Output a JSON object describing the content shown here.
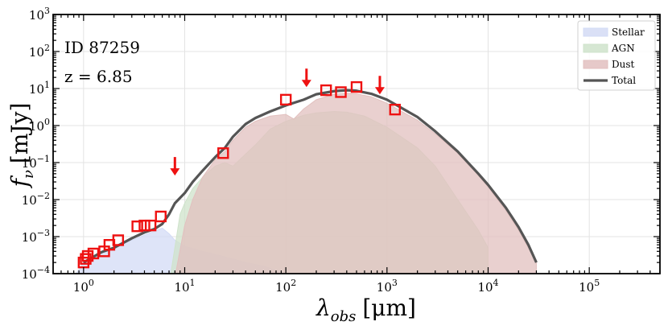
{
  "chart_data": {
    "type": "area",
    "xlabel": "λ_obs [μm]",
    "xlabel_main": "λ",
    "xlabel_sub": "obs",
    "xlabel_unit": "[μm]",
    "ylabel": "f_ν [mJy]",
    "ylabel_main": "f",
    "ylabel_sub": "ν",
    "ylabel_unit": "[mJy]",
    "xscale": "log",
    "yscale": "log",
    "xlim": [
      0.5,
      500000
    ],
    "ylim": [
      0.0001,
      1000
    ],
    "grid": true,
    "legend_position": "top-right",
    "x_ticks": [
      {
        "value": 1,
        "base": "10",
        "exp": "0"
      },
      {
        "value": 10,
        "base": "10",
        "exp": "1"
      },
      {
        "value": 100,
        "base": "10",
        "exp": "2"
      },
      {
        "value": 1000,
        "base": "10",
        "exp": "3"
      },
      {
        "value": 10000,
        "base": "10",
        "exp": "4"
      },
      {
        "value": 100000,
        "base": "10",
        "exp": "5"
      }
    ],
    "y_ticks": [
      {
        "value": 0.0001,
        "base": "10",
        "exp": "−4"
      },
      {
        "value": 0.001,
        "base": "10",
        "exp": "−3"
      },
      {
        "value": 0.01,
        "base": "10",
        "exp": "−2"
      },
      {
        "value": 0.1,
        "base": "10",
        "exp": "−1"
      },
      {
        "value": 1,
        "base": "10",
        "exp": "0"
      },
      {
        "value": 10,
        "base": "10",
        "exp": "1"
      },
      {
        "value": 100,
        "base": "10",
        "exp": "2"
      },
      {
        "value": 1000,
        "base": "10",
        "exp": "3"
      }
    ],
    "annotations": [
      "ID 87259",
      "z = 6.85"
    ],
    "series": [
      {
        "name": "Stellar",
        "color": "#d3dbf5",
        "points": [
          [
            0.8,
            8e-05
          ],
          [
            0.9,
            0.00013
          ],
          [
            1.0,
            0.0002
          ],
          [
            1.2,
            0.00028
          ],
          [
            1.5,
            0.00038
          ],
          [
            2.0,
            0.0005
          ],
          [
            3.0,
            0.0008
          ],
          [
            4.0,
            0.0011
          ],
          [
            5.0,
            0.0014
          ],
          [
            6.0,
            0.0017
          ],
          [
            7.0,
            0.0012
          ],
          [
            8.0,
            0.0008
          ],
          [
            10.0,
            0.00055
          ],
          [
            15.0,
            0.0004
          ],
          [
            20.0,
            0.00033
          ],
          [
            30.0,
            0.00025
          ],
          [
            40.0,
            0.0002
          ],
          [
            60.0,
            0.00016
          ],
          [
            100.0,
            0.0001
          ],
          [
            150.0,
            7e-05
          ]
        ]
      },
      {
        "name": "AGN",
        "color": "#cfe3cb",
        "points": [
          [
            7.0,
            5e-05
          ],
          [
            9.0,
            0.004
          ],
          [
            10.0,
            0.008
          ],
          [
            12.0,
            0.02
          ],
          [
            15.0,
            0.04
          ],
          [
            20.0,
            0.08
          ],
          [
            25.0,
            0.1
          ],
          [
            30.0,
            0.08
          ],
          [
            35.0,
            0.12
          ],
          [
            50.0,
            0.3
          ],
          [
            70.0,
            0.8
          ],
          [
            100.0,
            1.3
          ],
          [
            150.0,
            1.9
          ],
          [
            200.0,
            2.2
          ],
          [
            300.0,
            2.4
          ],
          [
            400.0,
            2.3
          ],
          [
            600.0,
            1.8
          ],
          [
            1000.0,
            0.9
          ],
          [
            2000.0,
            0.25
          ],
          [
            3000.0,
            0.08
          ],
          [
            5000.0,
            0.01
          ],
          [
            8000.0,
            0.0015
          ],
          [
            10000.0,
            0.0005
          ]
        ]
      },
      {
        "name": "Dust",
        "color": "#e2c0bf",
        "points": [
          [
            8.0,
            8e-05
          ],
          [
            10.0,
            0.002
          ],
          [
            12.0,
            0.01
          ],
          [
            15.0,
            0.04
          ],
          [
            20.0,
            0.12
          ],
          [
            25.0,
            0.2
          ],
          [
            30.0,
            0.4
          ],
          [
            40.0,
            0.9
          ],
          [
            50.0,
            1.3
          ],
          [
            70.0,
            1.8
          ],
          [
            100.0,
            2.0
          ],
          [
            120.0,
            1.5
          ],
          [
            150.0,
            2.8
          ],
          [
            200.0,
            5.0
          ],
          [
            300.0,
            7.0
          ],
          [
            400.0,
            7.5
          ],
          [
            500.0,
            7.2
          ],
          [
            700.0,
            6.0
          ],
          [
            1000.0,
            4.0
          ],
          [
            2000.0,
            1.4
          ],
          [
            3000.0,
            0.6
          ],
          [
            5000.0,
            0.18
          ],
          [
            8000.0,
            0.045
          ],
          [
            10000.0,
            0.022
          ],
          [
            15000.0,
            0.005
          ],
          [
            20000.0,
            0.0015
          ],
          [
            25000.0,
            0.0005
          ],
          [
            30000.0,
            0.0002
          ]
        ]
      },
      {
        "name": "Total",
        "color": "#555555",
        "points": [
          [
            1.0,
            0.0002
          ],
          [
            1.5,
            0.00038
          ],
          [
            2.0,
            0.0005
          ],
          [
            3.0,
            0.0009
          ],
          [
            4.0,
            0.0013
          ],
          [
            5.0,
            0.0016
          ],
          [
            6.0,
            0.0022
          ],
          [
            7.0,
            0.004
          ],
          [
            8.0,
            0.008
          ],
          [
            10.0,
            0.015
          ],
          [
            12.0,
            0.03
          ],
          [
            15.0,
            0.06
          ],
          [
            20.0,
            0.14
          ],
          [
            25.0,
            0.25
          ],
          [
            30.0,
            0.5
          ],
          [
            40.0,
            1.1
          ],
          [
            50.0,
            1.6
          ],
          [
            70.0,
            2.4
          ],
          [
            100.0,
            3.5
          ],
          [
            150.0,
            5.0
          ],
          [
            200.0,
            7.0
          ],
          [
            300.0,
            8.5
          ],
          [
            400.0,
            9.0
          ],
          [
            500.0,
            8.7
          ],
          [
            700.0,
            7.2
          ],
          [
            1000.0,
            5.0
          ],
          [
            2000.0,
            1.7
          ],
          [
            3000.0,
            0.7
          ],
          [
            5000.0,
            0.2
          ],
          [
            8000.0,
            0.05
          ],
          [
            10000.0,
            0.025
          ],
          [
            15000.0,
            0.006
          ],
          [
            20000.0,
            0.0018
          ],
          [
            25000.0,
            0.0006
          ],
          [
            30000.0,
            0.0002
          ]
        ]
      }
    ],
    "photometry": {
      "color": "#ee1111",
      "points": [
        [
          1.0,
          0.0002
        ],
        [
          1.05,
          0.00025
        ],
        [
          1.1,
          0.0003
        ],
        [
          1.25,
          0.00035
        ],
        [
          1.6,
          0.0004
        ],
        [
          1.8,
          0.0006
        ],
        [
          2.2,
          0.0008
        ],
        [
          3.4,
          0.0019
        ],
        [
          4.0,
          0.002
        ],
        [
          4.6,
          0.002
        ],
        [
          5.8,
          0.0035
        ],
        [
          24.0,
          0.18
        ],
        [
          100.0,
          5.0
        ],
        [
          250.0,
          9.0
        ],
        [
          350.0,
          8.0
        ],
        [
          500.0,
          11.0
        ],
        [
          1200.0,
          2.7
        ]
      ]
    },
    "upper_limits": {
      "color": "#ee1111",
      "points": [
        [
          8.0,
          0.09
        ],
        [
          160.0,
          22.0
        ],
        [
          850.0,
          14.0
        ]
      ]
    }
  }
}
